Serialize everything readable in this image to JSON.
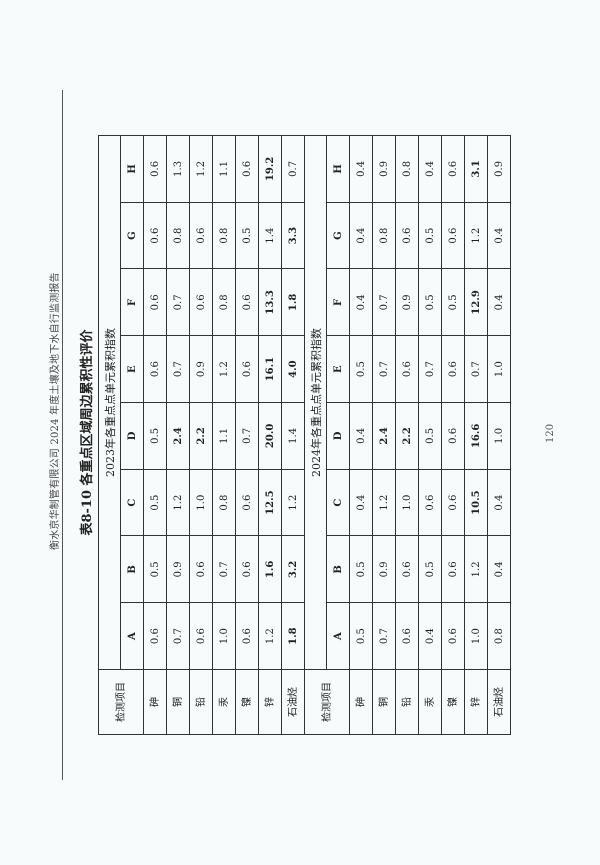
{
  "header": "衡水京华制管有限公司 2024 年度土壤及地下水自行监测报告",
  "title": "表8-10  各重点区域周边累积性评价",
  "row_label": "检测项目",
  "columns": [
    "A",
    "B",
    "C",
    "D",
    "E",
    "F",
    "G",
    "H"
  ],
  "tables": [
    {
      "subtitle": "2023年各重点点单元累积指数",
      "rows": [
        {
          "item": "砷",
          "values": [
            "0.6",
            "0.5",
            "0.5",
            "0.5",
            "0.6",
            "0.6",
            "0.6",
            "0.6"
          ],
          "bold": [
            0,
            0,
            0,
            0,
            0,
            0,
            0,
            0
          ]
        },
        {
          "item": "铜",
          "values": [
            "0.7",
            "0.9",
            "1.2",
            "2.4",
            "0.7",
            "0.7",
            "0.8",
            "1.3"
          ],
          "bold": [
            0,
            0,
            0,
            1,
            0,
            0,
            0,
            0
          ]
        },
        {
          "item": "铅",
          "values": [
            "0.6",
            "0.6",
            "1.0",
            "2.2",
            "0.9",
            "0.6",
            "0.6",
            "1.2"
          ],
          "bold": [
            0,
            0,
            0,
            1,
            0,
            0,
            0,
            0
          ]
        },
        {
          "item": "汞",
          "values": [
            "1.0",
            "0.7",
            "0.8",
            "1.1",
            "1.2",
            "0.8",
            "0.8",
            "1.1"
          ],
          "bold": [
            0,
            0,
            0,
            0,
            0,
            0,
            0,
            0
          ]
        },
        {
          "item": "镍",
          "values": [
            "0.6",
            "0.6",
            "0.6",
            "0.7",
            "0.6",
            "0.6",
            "0.5",
            "0.6"
          ],
          "bold": [
            0,
            0,
            0,
            0,
            0,
            0,
            0,
            0
          ]
        },
        {
          "item": "锌",
          "values": [
            "1.2",
            "1.6",
            "12.5",
            "20.0",
            "16.1",
            "13.3",
            "1.4",
            "19.2"
          ],
          "bold": [
            0,
            1,
            1,
            1,
            1,
            1,
            0,
            1
          ]
        },
        {
          "item": "石油烃",
          "values": [
            "1.8",
            "3.2",
            "1.2",
            "1.4",
            "4.0",
            "1.8",
            "3.3",
            "0.7"
          ],
          "bold": [
            1,
            1,
            0,
            0,
            1,
            1,
            1,
            0
          ]
        }
      ]
    },
    {
      "subtitle": "2024年各重点点单元累积指数",
      "rows": [
        {
          "item": "砷",
          "values": [
            "0.5",
            "0.5",
            "0.4",
            "0.4",
            "0.5",
            "0.4",
            "0.4",
            "0.4"
          ],
          "bold": [
            0,
            0,
            0,
            0,
            0,
            0,
            0,
            0
          ]
        },
        {
          "item": "铜",
          "values": [
            "0.7",
            "0.9",
            "1.2",
            "2.4",
            "0.7",
            "0.7",
            "0.8",
            "0.9"
          ],
          "bold": [
            0,
            0,
            0,
            1,
            0,
            0,
            0,
            0
          ]
        },
        {
          "item": "铅",
          "values": [
            "0.6",
            "0.6",
            "1.0",
            "2.2",
            "0.6",
            "0.9",
            "0.6",
            "0.8"
          ],
          "bold": [
            0,
            0,
            0,
            1,
            0,
            0,
            0,
            0
          ]
        },
        {
          "item": "汞",
          "values": [
            "0.4",
            "0.5",
            "0.6",
            "0.5",
            "0.7",
            "0.5",
            "0.5",
            "0.4"
          ],
          "bold": [
            0,
            0,
            0,
            0,
            0,
            0,
            0,
            0
          ]
        },
        {
          "item": "镍",
          "values": [
            "0.6",
            "0.6",
            "0.6",
            "0.6",
            "0.6",
            "0.5",
            "0.6",
            "0.6"
          ],
          "bold": [
            0,
            0,
            0,
            0,
            0,
            0,
            0,
            0
          ]
        },
        {
          "item": "锌",
          "values": [
            "1.0",
            "1.2",
            "10.5",
            "16.6",
            "0.7",
            "12.9",
            "1.2",
            "3.1"
          ],
          "bold": [
            0,
            0,
            1,
            1,
            0,
            1,
            0,
            1
          ]
        },
        {
          "item": "石油烃",
          "values": [
            "0.8",
            "0.4",
            "0.4",
            "1.0",
            "1.0",
            "0.4",
            "0.4",
            "0.9"
          ],
          "bold": [
            0,
            0,
            0,
            0,
            0,
            0,
            0,
            0
          ]
        }
      ]
    }
  ],
  "page_number": "120"
}
